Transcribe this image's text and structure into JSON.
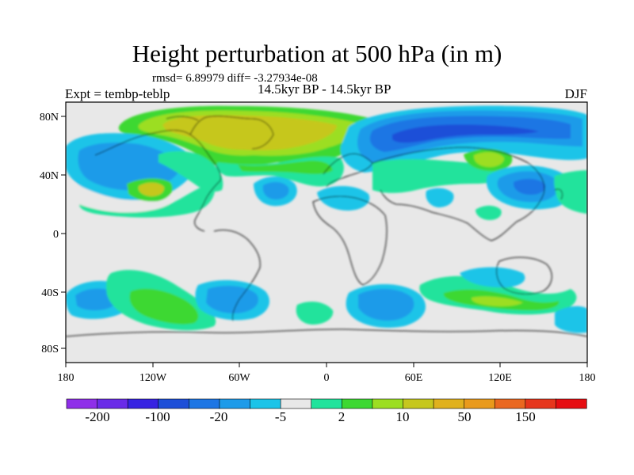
{
  "map": {
    "title": "Height perturbation at 500 hPa (in m)",
    "stats_line": "rmsd= 6.89979 diff= -3.27934e-08",
    "experiment": "Expt = tembp-teblp",
    "period": "14.5kyr BP - 14.5kyr BP",
    "season": "DJF",
    "lat_labels": [
      "80N",
      "40N",
      "0",
      "40S",
      "80S"
    ],
    "lon_labels": [
      "180",
      "120W",
      "60W",
      "0",
      "60E",
      "120E",
      "180"
    ]
  },
  "colorbar": {
    "labels": [
      "-200",
      "-100",
      "-20",
      "-5",
      "2",
      "10",
      "50",
      "150"
    ],
    "colors": [
      "#8f2fe9",
      "#6a2be8",
      "#3723e2",
      "#1d4fd8",
      "#1d76e4",
      "#1e9be9",
      "#1cc4e8",
      "#e8e8e8",
      "#20e39c",
      "#3dd832",
      "#9cde22",
      "#c6c71e",
      "#e0b11e",
      "#e99a1c",
      "#ea6820",
      "#e6361c",
      "#e60d11"
    ]
  }
}
